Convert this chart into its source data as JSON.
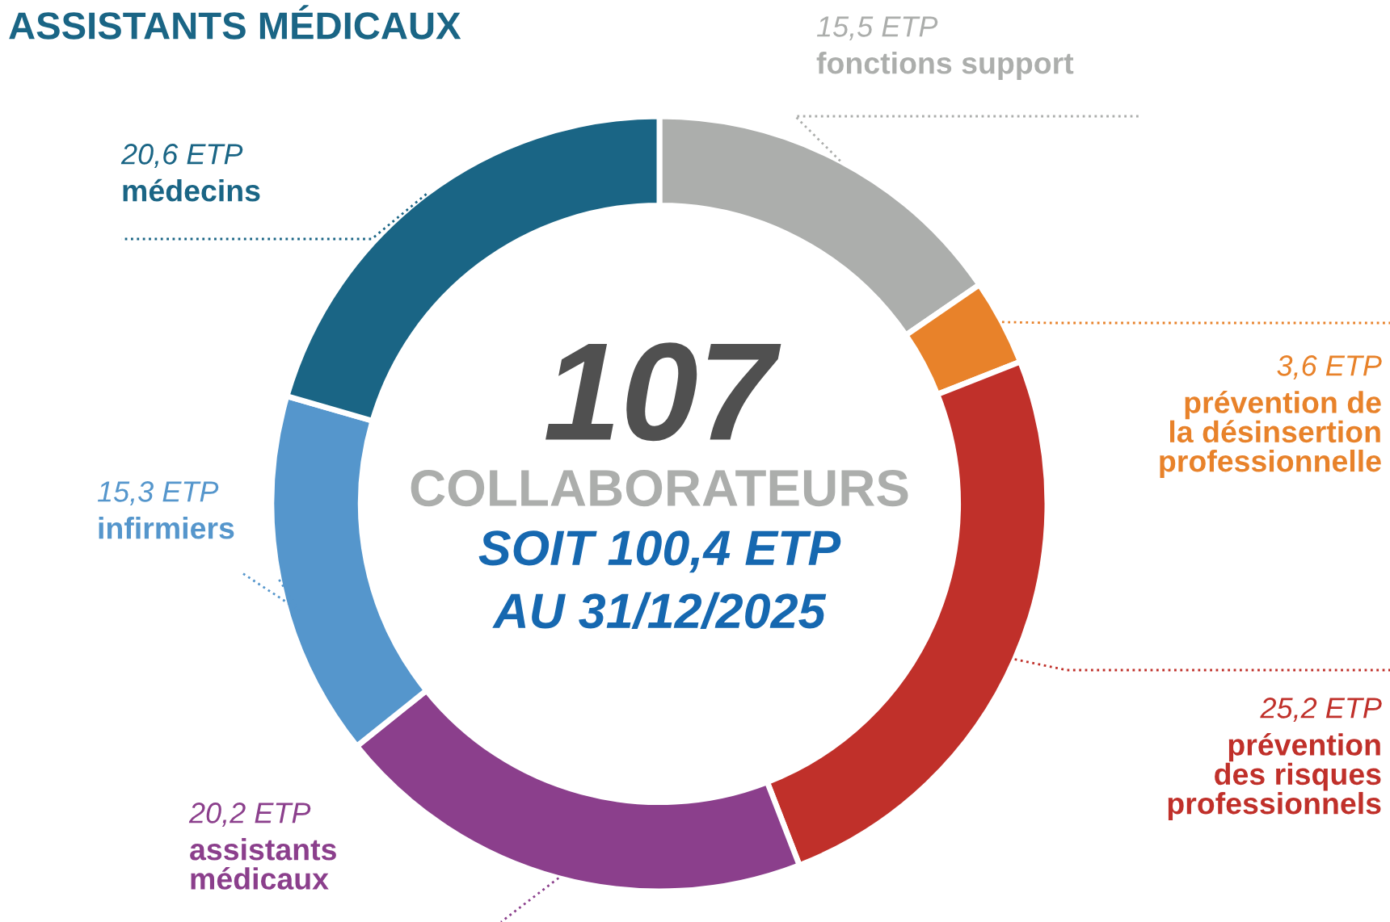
{
  "chart_data": {
    "type": "donut",
    "title": "ASSISTANTS MÉDICAUX",
    "categories": [
      "fonctions support",
      "prévention de\nla désinsertion\nprofessionnelle",
      "prévention\ndes risques\nprofessionnels",
      "assistants\nmédicaux",
      "infirmiers",
      "médecins"
    ],
    "values": [
      15.5,
      3.6,
      25.2,
      20.2,
      15.3,
      20.6
    ],
    "value_labels": [
      "15,5 ETP",
      "3,6 ETP",
      "25,2 ETP",
      "20,2 ETP",
      "15,3 ETP",
      "20,6 ETP"
    ],
    "colors": [
      "#acaeac",
      "#e8822a",
      "#c0302a",
      "#8b3f8c",
      "#5596cc",
      "#1a6585"
    ],
    "annotations": [
      "107",
      "COLLABORATEURS",
      "SOIT 100,4 ETP",
      "AU 31/12/2025"
    ]
  }
}
